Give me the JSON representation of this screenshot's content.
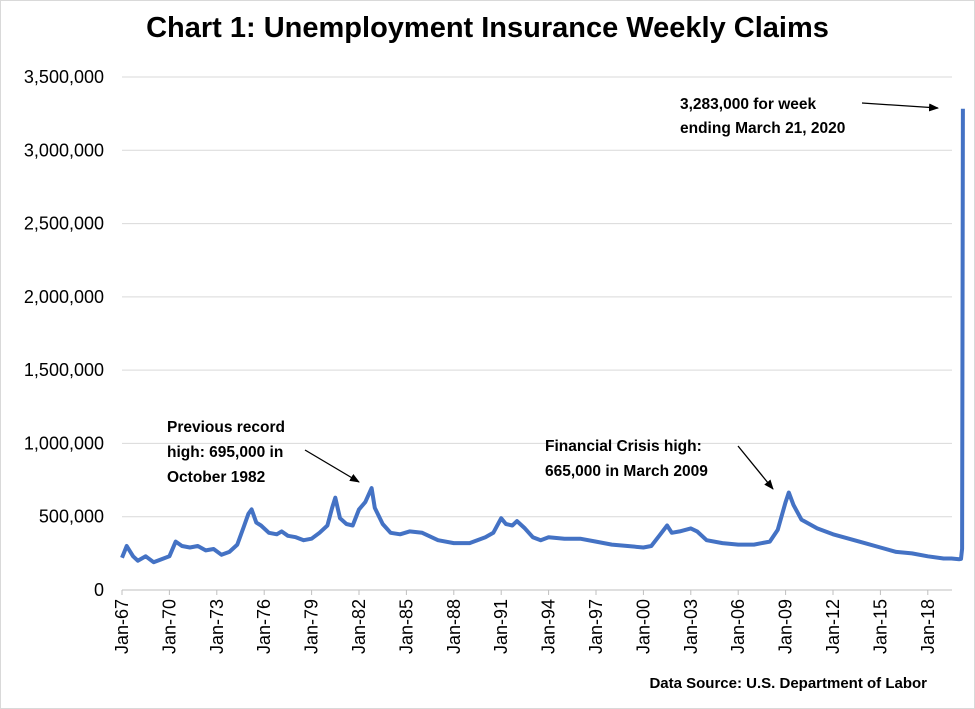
{
  "chart_data": {
    "type": "line",
    "title": "Chart 1: Unemployment Insurance Weekly Claims",
    "source": "Data Source: U.S. Department of Labor",
    "ylim": [
      0,
      3500000
    ],
    "yticks": [
      0,
      500000,
      1000000,
      1500000,
      2000000,
      2500000,
      3000000,
      3500000
    ],
    "ytick_labels": [
      "0",
      "500,000",
      "1,000,000",
      "1,500,000",
      "2,000,000",
      "2,500,000",
      "3,000,000",
      "3,500,000"
    ],
    "xticks": [
      "Jan-67",
      "Jan-70",
      "Jan-73",
      "Jan-76",
      "Jan-79",
      "Jan-82",
      "Jan-85",
      "Jan-88",
      "Jan-91",
      "Jan-94",
      "Jan-97",
      "Jan-00",
      "Jan-03",
      "Jan-06",
      "Jan-09",
      "Jan-12",
      "Jan-15",
      "Jan-18"
    ],
    "grid": true,
    "line_color": "#4472c4",
    "series": [
      {
        "x": [
          1967.0,
          1967.3,
          1967.7,
          1968.0,
          1968.5,
          1969.0,
          1969.5,
          1970.0,
          1970.4,
          1970.8,
          1971.3,
          1971.8,
          1972.3,
          1972.8,
          1973.3,
          1973.8,
          1974.3,
          1974.7,
          1975.0,
          1975.2,
          1975.5,
          1975.8,
          1976.3,
          1976.8,
          1977.1,
          1977.5,
          1978.0,
          1978.5,
          1979.0,
          1979.5,
          1980.0,
          1980.3,
          1980.5,
          1980.8,
          1981.2,
          1981.6,
          1982.0,
          1982.4,
          1982.8,
          1983.0,
          1983.5,
          1984.0,
          1984.6,
          1985.2,
          1986.0,
          1987.0,
          1988.0,
          1989.0,
          1990.0,
          1990.5,
          1991.0,
          1991.3,
          1991.7,
          1992.0,
          1992.5,
          1993.0,
          1993.5,
          1994.0,
          1995.0,
          1996.0,
          1997.0,
          1998.0,
          1999.0,
          2000.0,
          2000.5,
          2001.0,
          2001.5,
          2001.8,
          2002.3,
          2003.0,
          2003.4,
          2004.0,
          2005.0,
          2006.0,
          2007.0,
          2008.0,
          2008.5,
          2009.0,
          2009.2,
          2009.5,
          2010.0,
          2011.0,
          2012.0,
          2013.0,
          2014.0,
          2015.0,
          2016.0,
          2017.0,
          2018.0,
          2019.0,
          2019.5,
          2020.0,
          2020.1,
          2020.17,
          2020.22
        ],
        "values": [
          220000,
          300000,
          230000,
          200000,
          230000,
          190000,
          210000,
          230000,
          330000,
          300000,
          290000,
          300000,
          270000,
          280000,
          240000,
          260000,
          310000,
          430000,
          520000,
          550000,
          460000,
          440000,
          390000,
          380000,
          400000,
          370000,
          360000,
          340000,
          350000,
          390000,
          440000,
          560000,
          630000,
          490000,
          450000,
          440000,
          550000,
          600000,
          695000,
          560000,
          450000,
          390000,
          380000,
          400000,
          390000,
          340000,
          320000,
          320000,
          360000,
          390000,
          490000,
          450000,
          440000,
          470000,
          420000,
          360000,
          340000,
          360000,
          350000,
          350000,
          330000,
          310000,
          300000,
          290000,
          300000,
          370000,
          440000,
          390000,
          400000,
          420000,
          400000,
          340000,
          320000,
          310000,
          310000,
          330000,
          410000,
          600000,
          665000,
          580000,
          480000,
          420000,
          380000,
          350000,
          320000,
          290000,
          260000,
          250000,
          230000,
          215000,
          215000,
          210000,
          212000,
          281000,
          3283000
        ]
      }
    ],
    "annotations": [
      {
        "lines": [
          "3,283,000 for week",
          "ending March 21, 2020"
        ]
      },
      {
        "lines": [
          "Previous record",
          "high: 695,000 in",
          "October 1982"
        ]
      },
      {
        "lines": [
          "Financial Crisis high:",
          "665,000 in March 2009"
        ]
      }
    ]
  }
}
